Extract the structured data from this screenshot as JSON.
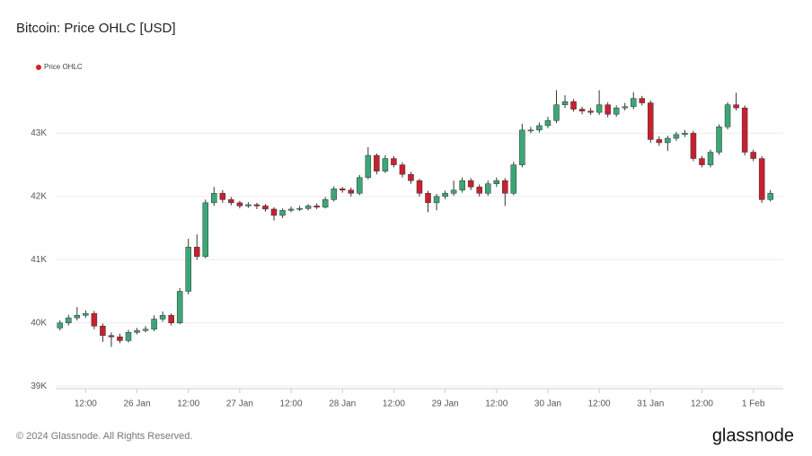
{
  "chart_data": {
    "type": "candlestick",
    "title": "Bitcoin: Price OHLC [USD]",
    "series_name": "Price OHLC",
    "up_color": "#3aa776",
    "down_color": "#c9202f",
    "legend_color": "#d7201f",
    "footer": "© 2024 Glassnode. All Rights Reserved.",
    "brand": "glassnode",
    "grid": true,
    "x": [
      "25 Jan 06:00",
      "25 Jan 08:00",
      "25 Jan 10:00",
      "25 Jan 12:00",
      "25 Jan 14:00",
      "25 Jan 16:00",
      "25 Jan 18:00",
      "25 Jan 20:00",
      "25 Jan 22:00",
      "26 Jan 00:00",
      "26 Jan 02:00",
      "26 Jan 04:00",
      "26 Jan 06:00",
      "26 Jan 08:00",
      "26 Jan 10:00",
      "26 Jan 12:00",
      "26 Jan 14:00",
      "26 Jan 16:00",
      "26 Jan 18:00",
      "26 Jan 20:00",
      "26 Jan 22:00",
      "27 Jan 00:00",
      "27 Jan 02:00",
      "27 Jan 04:00",
      "27 Jan 06:00",
      "27 Jan 08:00",
      "27 Jan 10:00",
      "27 Jan 12:00",
      "27 Jan 14:00",
      "27 Jan 16:00",
      "27 Jan 18:00",
      "27 Jan 20:00",
      "27 Jan 22:00",
      "28 Jan 00:00",
      "28 Jan 02:00",
      "28 Jan 04:00",
      "28 Jan 06:00",
      "28 Jan 08:00",
      "28 Jan 10:00",
      "28 Jan 12:00",
      "28 Jan 14:00",
      "28 Jan 16:00",
      "28 Jan 18:00",
      "28 Jan 20:00",
      "28 Jan 22:00",
      "29 Jan 00:00",
      "29 Jan 02:00",
      "29 Jan 04:00",
      "29 Jan 06:00",
      "29 Jan 08:00",
      "29 Jan 10:00",
      "29 Jan 12:00",
      "29 Jan 14:00",
      "29 Jan 16:00",
      "29 Jan 18:00",
      "29 Jan 20:00",
      "29 Jan 22:00",
      "30 Jan 00:00",
      "30 Jan 02:00",
      "30 Jan 04:00",
      "30 Jan 06:00",
      "30 Jan 08:00",
      "30 Jan 10:00",
      "30 Jan 12:00",
      "30 Jan 14:00",
      "30 Jan 16:00",
      "30 Jan 18:00",
      "30 Jan 20:00",
      "30 Jan 22:00",
      "31 Jan 00:00",
      "31 Jan 02:00",
      "31 Jan 04:00",
      "31 Jan 06:00",
      "31 Jan 08:00",
      "31 Jan 10:00",
      "31 Jan 12:00",
      "31 Jan 14:00",
      "31 Jan 16:00",
      "31 Jan 18:00",
      "31 Jan 20:00",
      "31 Jan 22:00",
      "1 Feb 00:00",
      "1 Feb 02:00",
      "1 Feb 04:00"
    ],
    "open": [
      39920,
      40000,
      40080,
      40120,
      40150,
      39950,
      39800,
      39780,
      39720,
      39850,
      39880,
      39900,
      40060,
      40120,
      40000,
      40500,
      41200,
      41050,
      41900,
      42050,
      41950,
      41900,
      41850,
      41870,
      41850,
      41800,
      41700,
      41780,
      41800,
      41810,
      41850,
      41830,
      41950,
      42120,
      42100,
      42050,
      42300,
      42650,
      42400,
      42600,
      42500,
      42350,
      42250,
      42050,
      41900,
      42000,
      42050,
      42100,
      42250,
      42150,
      42050,
      42200,
      42250,
      42050,
      42500,
      43050,
      43050,
      43120,
      43200,
      43450,
      43500,
      43380,
      43350,
      43330,
      43450,
      43300,
      43400,
      43420,
      43550,
      43480,
      42900,
      42850,
      42920,
      42980,
      43000,
      42600,
      42500,
      42700,
      43100,
      43450,
      43400,
      42700,
      42600,
      41950
    ],
    "high": [
      40040,
      40130,
      40250,
      40200,
      40190,
      39990,
      39850,
      39830,
      39890,
      39920,
      39950,
      40120,
      40180,
      40150,
      40550,
      41330,
      41400,
      41950,
      42150,
      42100,
      41990,
      41930,
      41910,
      41900,
      41880,
      41830,
      41810,
      41840,
      41850,
      41880,
      41890,
      41990,
      42160,
      42150,
      42140,
      42340,
      42780,
      42680,
      42650,
      42640,
      42540,
      42390,
      42280,
      42090,
      42040,
      42090,
      42250,
      42300,
      42290,
      42190,
      42250,
      42300,
      42290,
      42550,
      43150,
      43100,
      43170,
      43260,
      43680,
      43600,
      43540,
      43420,
      43400,
      43680,
      43490,
      43440,
      43480,
      43650,
      43590,
      43520,
      42950,
      42960,
      43020,
      43050,
      43040,
      42640,
      42740,
      43140,
      43490,
      43640,
      43440,
      42740,
      42640,
      42100
    ],
    "low": [
      39880,
      39960,
      40040,
      40080,
      39900,
      39700,
      39620,
      39680,
      39690,
      39820,
      39850,
      39870,
      40020,
      39960,
      39980,
      40450,
      41000,
      41020,
      41850,
      41900,
      41860,
      41810,
      41820,
      41800,
      41760,
      41620,
      41660,
      41750,
      41770,
      41780,
      41800,
      41810,
      41920,
      42060,
      42000,
      42020,
      42270,
      42350,
      42370,
      42460,
      42300,
      42200,
      42000,
      41750,
      41780,
      41960,
      42010,
      42060,
      42100,
      42000,
      42010,
      42150,
      41850,
      42020,
      42460,
      43000,
      43010,
      43080,
      43160,
      43400,
      43340,
      43300,
      43290,
      43290,
      43250,
      43260,
      43360,
      43380,
      43440,
      42850,
      42800,
      42720,
      42880,
      42940,
      42560,
      42460,
      42460,
      42660,
      43060,
      43360,
      42650,
      42560,
      41900,
      41920
    ],
    "close": [
      40000,
      40080,
      40120,
      40150,
      39950,
      39800,
      39780,
      39720,
      39850,
      39880,
      39900,
      40060,
      40120,
      40000,
      40500,
      41200,
      41050,
      41900,
      42050,
      41950,
      41900,
      41850,
      41870,
      41850,
      41800,
      41700,
      41780,
      41800,
      41810,
      41850,
      41830,
      41950,
      42120,
      42100,
      42050,
      42300,
      42650,
      42400,
      42600,
      42500,
      42350,
      42250,
      42050,
      41900,
      42000,
      42050,
      42100,
      42250,
      42150,
      42050,
      42200,
      42250,
      42050,
      42500,
      43050,
      43050,
      43120,
      43200,
      43450,
      43500,
      43380,
      43350,
      43330,
      43450,
      43300,
      43400,
      43420,
      43550,
      43480,
      42900,
      42850,
      42920,
      42980,
      43000,
      42600,
      42500,
      42700,
      43100,
      43450,
      43400,
      42700,
      42600,
      41950,
      42050
    ],
    "xlim": [
      "25 Jan 05:00",
      "1 Feb 07:00"
    ],
    "xticks": [
      {
        "value": "25 Jan 12:00",
        "label": "12:00"
      },
      {
        "value": "26 Jan 00:00",
        "label": "26 Jan"
      },
      {
        "value": "26 Jan 12:00",
        "label": "12:00"
      },
      {
        "value": "27 Jan 00:00",
        "label": "27 Jan"
      },
      {
        "value": "27 Jan 12:00",
        "label": "12:00"
      },
      {
        "value": "28 Jan 00:00",
        "label": "28 Jan"
      },
      {
        "value": "28 Jan 12:00",
        "label": "12:00"
      },
      {
        "value": "29 Jan 00:00",
        "label": "29 Jan"
      },
      {
        "value": "29 Jan 12:00",
        "label": "12:00"
      },
      {
        "value": "30 Jan 00:00",
        "label": "30 Jan"
      },
      {
        "value": "30 Jan 12:00",
        "label": "12:00"
      },
      {
        "value": "31 Jan 00:00",
        "label": "31 Jan"
      },
      {
        "value": "31 Jan 12:00",
        "label": "12:00"
      },
      {
        "value": "1 Feb 00:00",
        "label": "1 Feb"
      }
    ],
    "ylim": [
      38960,
      43900
    ],
    "yticks": [
      {
        "value": 39000,
        "label": "39K"
      },
      {
        "value": 40000,
        "label": "40K"
      },
      {
        "value": 41000,
        "label": "41K"
      },
      {
        "value": 42000,
        "label": "42K"
      },
      {
        "value": 43000,
        "label": "43K"
      }
    ]
  }
}
